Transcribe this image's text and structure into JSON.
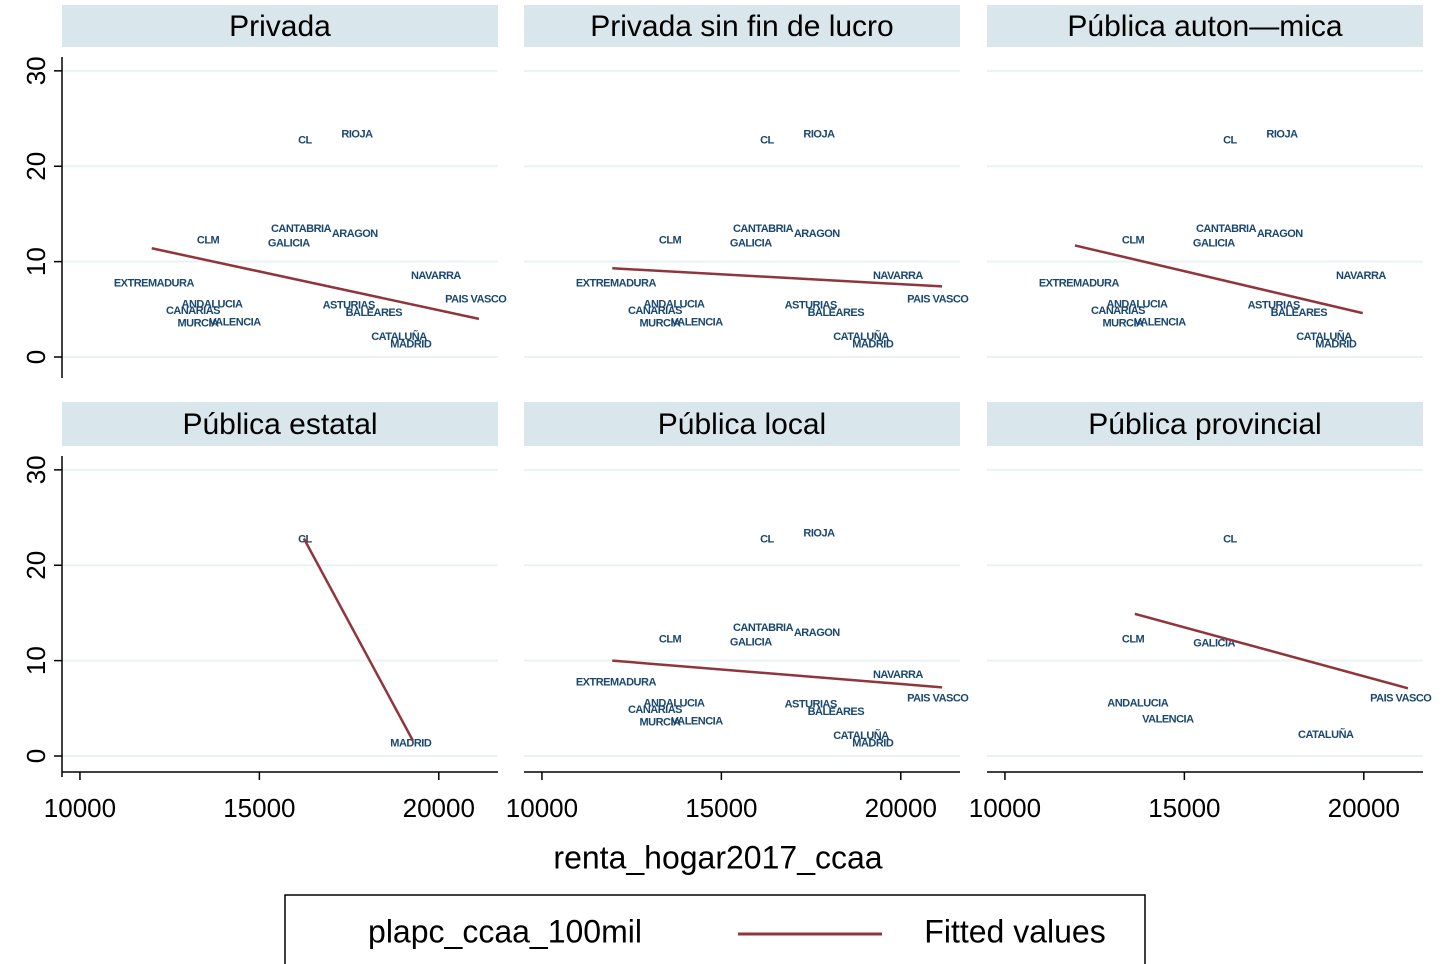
{
  "chart_data": {
    "type": "scatter",
    "xlabel": "renta_hogar2017_ccaa",
    "xlim": [
      9500,
      21650
    ],
    "xticks": [
      10000,
      15000,
      20000
    ],
    "ylim": [
      -2.2,
      32.5
    ],
    "yticks": [
      0,
      10,
      20,
      30
    ],
    "grid": true,
    "series": [
      {
        "name": "plapc_ccaa_100mil",
        "color": "#1a476f"
      },
      {
        "name": "Fitted values",
        "color": "#90353b"
      }
    ],
    "panels": [
      {
        "title": "Privada",
        "labels": [
          "CL",
          "RIOJA",
          "CANTABRIA",
          "ARAGON",
          "GALICIA",
          "CLM",
          "NAVARRA",
          "EXTREMADURA",
          "PAIS VASCO",
          "ASTURIAS",
          "BALEARES",
          "ANDALUCIA",
          "CANARIAS",
          "MURCIA",
          "VALENCIA",
          "CATALUÑA",
          "MADRID"
        ],
        "x": [
          16270,
          17720,
          16160,
          17660,
          15820,
          13570,
          19920,
          12060,
          21030,
          17490,
          18190,
          13680,
          13150,
          13290,
          14320,
          18890,
          19220
        ],
        "values": [
          22.7,
          23.3,
          13.4,
          12.9,
          11.9,
          12.2,
          8.5,
          7.7,
          6.0,
          5.4,
          4.6,
          5.5,
          4.8,
          3.5,
          3.6,
          2.1,
          1.3
        ],
        "fit_x": [
          12000,
          21120
        ],
        "fit_values": [
          11.4,
          4.0
        ]
      },
      {
        "title": "Privada sin fin de lucro",
        "labels": [
          "CL",
          "RIOJA",
          "CANTABRIA",
          "ARAGON",
          "GALICIA",
          "CLM",
          "NAVARRA",
          "EXTREMADURA",
          "PAIS VASCO",
          "ASTURIAS",
          "BALEARES",
          "ANDALUCIA",
          "CANARIAS",
          "MURCIA",
          "VALENCIA",
          "CATALUÑA",
          "MADRID"
        ],
        "x": [
          16270,
          17720,
          16160,
          17660,
          15820,
          13570,
          19920,
          12060,
          21030,
          17490,
          18190,
          13680,
          13150,
          13290,
          14320,
          18890,
          19220
        ],
        "values": [
          22.7,
          23.3,
          13.4,
          12.9,
          11.9,
          12.2,
          8.5,
          7.7,
          6.0,
          5.4,
          4.6,
          5.5,
          4.8,
          3.5,
          3.6,
          2.1,
          1.3
        ],
        "fit_x": [
          11960,
          21150
        ],
        "fit_values": [
          9.3,
          7.4
        ]
      },
      {
        "title": "Pública auton—mica",
        "labels": [
          "CL",
          "RIOJA",
          "CANTABRIA",
          "ARAGON",
          "GALICIA",
          "CLM",
          "NAVARRA",
          "EXTREMADURA",
          "ASTURIAS",
          "BALEARES",
          "ANDALUCIA",
          "CANARIAS",
          "MURCIA",
          "VALENCIA",
          "CATALUÑA",
          "MADRID"
        ],
        "x": [
          16270,
          17720,
          16160,
          17660,
          15820,
          13570,
          19920,
          12060,
          17490,
          18190,
          13680,
          13150,
          13290,
          14320,
          18890,
          19220
        ],
        "values": [
          22.7,
          23.3,
          13.4,
          12.9,
          11.9,
          12.2,
          8.5,
          7.7,
          5.4,
          4.6,
          5.5,
          4.8,
          3.5,
          3.6,
          2.1,
          1.3
        ],
        "fit_x": [
          11950,
          19970
        ],
        "fit_values": [
          11.7,
          4.6
        ]
      },
      {
        "title": "Pública estatal",
        "labels": [
          "CL",
          "MADRID"
        ],
        "x": [
          16270,
          19220
        ],
        "values": [
          22.7,
          1.3
        ],
        "fit_x": [
          16240,
          19280
        ],
        "fit_values": [
          22.8,
          1.6
        ]
      },
      {
        "title": "Pública local",
        "labels": [
          "CL",
          "RIOJA",
          "CANTABRIA",
          "ARAGON",
          "GALICIA",
          "CLM",
          "NAVARRA",
          "EXTREMADURA",
          "PAIS VASCO",
          "ASTURIAS",
          "BALEARES",
          "ANDALUCIA",
          "CANARIAS",
          "MURCIA",
          "VALENCIA",
          "CATALUÑA",
          "MADRID"
        ],
        "x": [
          16270,
          17720,
          16160,
          17660,
          15820,
          13570,
          19920,
          12060,
          21030,
          17490,
          18190,
          13680,
          13150,
          13290,
          14320,
          18890,
          19220
        ],
        "values": [
          22.7,
          23.3,
          13.4,
          12.9,
          11.9,
          12.2,
          8.5,
          7.7,
          6.0,
          5.4,
          4.6,
          5.5,
          4.8,
          3.5,
          3.6,
          2.1,
          1.3
        ],
        "fit_x": [
          11960,
          21150
        ],
        "fit_values": [
          10.0,
          7.2
        ]
      },
      {
        "title": "Pública provincial",
        "labels": [
          "CL",
          "CLM",
          "GALICIA",
          "ANDALUCIA",
          "VALENCIA",
          "PAIS VASCO",
          "CATALUÑA"
        ],
        "x": [
          16270,
          13570,
          15830,
          13700,
          14540,
          21030,
          18940
        ],
        "values": [
          22.7,
          12.2,
          11.8,
          5.5,
          3.8,
          6.0,
          2.2
        ],
        "fit_x": [
          13620,
          21230
        ],
        "fit_values": [
          14.9,
          7.1
        ]
      }
    ]
  }
}
